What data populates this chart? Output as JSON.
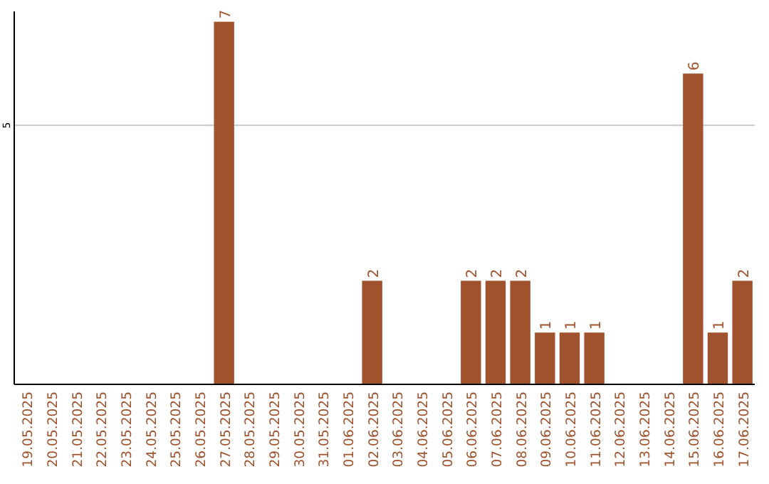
{
  "chart_data": {
    "type": "bar",
    "categories": [
      "19.05.2025",
      "20.05.2025",
      "21.05.2025",
      "22.05.2025",
      "23.05.2025",
      "24.05.2025",
      "25.05.2025",
      "26.05.2025",
      "27.05.2025",
      "28.05.2025",
      "29.05.2025",
      "30.05.2025",
      "31.05.2025",
      "01.06.2025",
      "02.06.2025",
      "03.06.2025",
      "04.06.2025",
      "05.06.2025",
      "06.06.2025",
      "07.06.2025",
      "08.06.2025",
      "09.06.2025",
      "10.06.2025",
      "11.06.2025",
      "12.06.2025",
      "13.06.2025",
      "14.06.2025",
      "15.06.2025",
      "16.06.2025",
      "17.06.2025"
    ],
    "values": [
      0,
      0,
      0,
      0,
      0,
      0,
      0,
      0,
      7,
      0,
      0,
      0,
      0,
      0,
      2,
      0,
      0,
      0,
      2,
      2,
      2,
      1,
      1,
      1,
      0,
      0,
      0,
      6,
      1,
      2
    ],
    "value_labels": [
      null,
      null,
      null,
      null,
      null,
      null,
      null,
      null,
      "7",
      null,
      null,
      null,
      null,
      null,
      "2",
      null,
      null,
      null,
      "2",
      "2",
      "2",
      "1",
      "1",
      "1",
      null,
      null,
      null,
      "6",
      "1",
      "2"
    ],
    "color": "#a0522d",
    "ylim": [
      0,
      7.2
    ],
    "yticks": [
      5
    ],
    "grid": "y"
  }
}
